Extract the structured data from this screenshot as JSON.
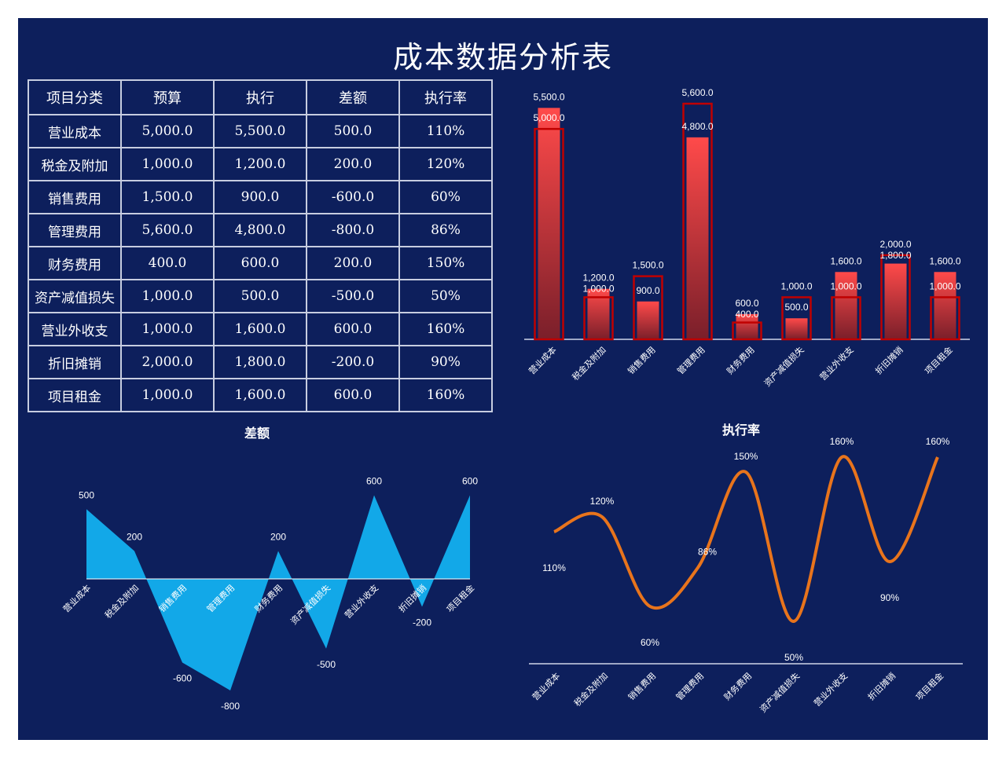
{
  "title": "成本数据分析表",
  "table": {
    "headers": [
      "项目分类",
      "预算",
      "执行",
      "差额",
      "执行率"
    ],
    "rows": [
      [
        "营业成本",
        "5,000.0",
        "5,500.0",
        "500.0",
        "110%"
      ],
      [
        "税金及附加",
        "1,000.0",
        "1,200.0",
        "200.0",
        "120%"
      ],
      [
        "销售费用",
        "1,500.0",
        "900.0",
        "-600.0",
        "60%"
      ],
      [
        "管理费用",
        "5,600.0",
        "4,800.0",
        "-800.0",
        "86%"
      ],
      [
        "财务费用",
        "400.0",
        "600.0",
        "200.0",
        "150%"
      ],
      [
        "资产减值损失",
        "1,000.0",
        "500.0",
        "-500.0",
        "50%"
      ],
      [
        "营业外收支",
        "1,000.0",
        "1,600.0",
        "600.0",
        "160%"
      ],
      [
        "折旧摊销",
        "2,000.0",
        "1,800.0",
        "-200.0",
        "90%"
      ],
      [
        "项目租金",
        "1,000.0",
        "1,600.0",
        "600.0",
        "160%"
      ]
    ]
  },
  "colors": {
    "background": "#0d1f5c",
    "bar_fill_top": "#ff4a4a",
    "bar_fill_bottom": "#7a1f2a",
    "bar_outline": "#c00000",
    "area_fill": "#12a8e8",
    "line_color": "#e8741c",
    "text": "#ffffff"
  },
  "chart_data": [
    {
      "type": "bar",
      "title": "",
      "categories": [
        "营业成本",
        "税金及附加",
        "销售费用",
        "管理费用",
        "财务费用",
        "资产减值损失",
        "营业外收支",
        "折旧摊销",
        "项目租金"
      ],
      "series": [
        {
          "values": [
            5000,
            1000,
            1500,
            5600,
            400,
            1000,
            1000,
            2000,
            1000
          ]
        },
        {
          "values": [
            5500,
            1200,
            900,
            4800,
            600,
            500,
            1600,
            1800,
            1600
          ]
        }
      ],
      "budget_labels": [
        "5,000.0",
        "1,000.0",
        "1,500.0",
        "5,600.0",
        "400.0",
        "1,000.0",
        "1,000.0",
        "2,000.0",
        "1,000.0"
      ],
      "actual_labels": [
        "5,500.0",
        "1,200.0",
        "900.0",
        "4,800.0",
        "600.0",
        "500.0",
        "1,600.0",
        "1,800.0",
        "1,600.0"
      ],
      "grid": false
    },
    {
      "type": "area",
      "title": "差额",
      "categories": [
        "营业成本",
        "税金及附加",
        "销售费用",
        "管理费用",
        "财务费用",
        "资产减值损失",
        "营业外收支",
        "折旧摊销",
        "项目租金"
      ],
      "values": [
        500,
        200,
        -600,
        -800,
        200,
        -500,
        600,
        -200,
        600
      ],
      "grid": false
    },
    {
      "type": "line",
      "title": "执行率",
      "categories": [
        "营业成本",
        "税金及附加",
        "销售费用",
        "管理费用",
        "财务费用",
        "资产减值损失",
        "营业外收支",
        "折旧摊销",
        "项目租金"
      ],
      "values": [
        110,
        120,
        60,
        86,
        150,
        50,
        160,
        90,
        160
      ],
      "labels": [
        "110%",
        "120%",
        "60%",
        "86%",
        "150%",
        "50%",
        "160%",
        "90%",
        "160%"
      ],
      "grid": false
    }
  ]
}
